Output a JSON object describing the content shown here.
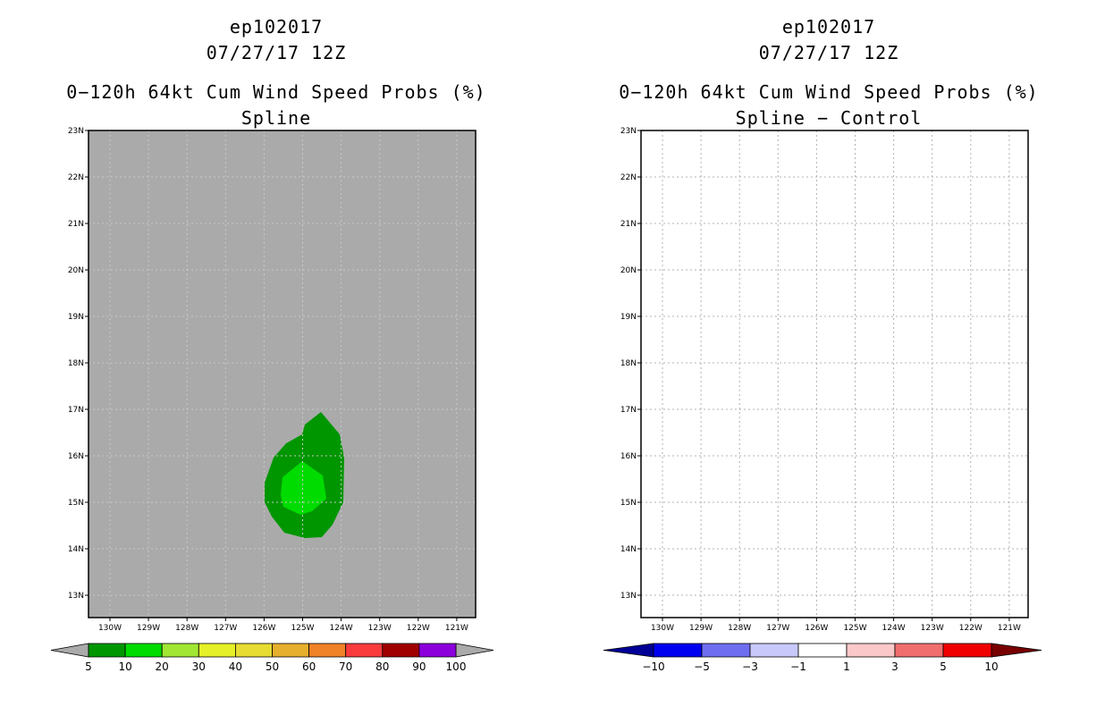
{
  "left_panel": {
    "storm_id": "ep102017",
    "datetime": "07/27/17 12Z",
    "product": "0−120h 64kt Cum Wind Speed Probs (%)",
    "subtitle": "Spline",
    "lat_labels": [
      "23N",
      "22N",
      "21N",
      "20N",
      "19N",
      "18N",
      "17N",
      "16N",
      "15N",
      "14N",
      "13N"
    ],
    "lon_labels": [
      "130W",
      "129W",
      "128W",
      "127W",
      "126W",
      "125W",
      "124W",
      "123W",
      "122W",
      "121W"
    ],
    "background_color": "#aaaaaa",
    "colorbar": {
      "labels": [
        "5",
        "10",
        "20",
        "30",
        "40",
        "50",
        "60",
        "70",
        "80",
        "90",
        "100"
      ],
      "colors": [
        "#009600",
        "#00dc00",
        "#a0e632",
        "#e6f028",
        "#e6dc32",
        "#e6af2d",
        "#f08228",
        "#fa3c3c",
        "#a00000",
        "#8c00dc"
      ],
      "end_color": "#aaaaaa"
    },
    "contours": [
      {
        "level": "5",
        "color": "#009600"
      },
      {
        "level": "10",
        "color": "#00dc00"
      }
    ]
  },
  "right_panel": {
    "storm_id": "ep102017",
    "datetime": "07/27/17 12Z",
    "product": "0−120h 64kt Cum Wind Speed Probs (%)",
    "subtitle": "Spline − Control",
    "lat_labels": [
      "23N",
      "22N",
      "21N",
      "20N",
      "19N",
      "18N",
      "17N",
      "16N",
      "15N",
      "14N",
      "13N"
    ],
    "lon_labels": [
      "130W",
      "129W",
      "128W",
      "127W",
      "126W",
      "125W",
      "124W",
      "123W",
      "122W",
      "121W"
    ],
    "background_color": "#ffffff",
    "colorbar": {
      "labels": [
        "−10",
        "−5",
        "−3",
        "−1",
        "1",
        "3",
        "5",
        "10"
      ],
      "colors": [
        "#0000f0",
        "#6e6ef0",
        "#c8c8fa",
        "#ffffff",
        "#fac8c8",
        "#f06e6e",
        "#f00000"
      ],
      "end_colors": [
        "#000096",
        "#780000"
      ]
    }
  }
}
